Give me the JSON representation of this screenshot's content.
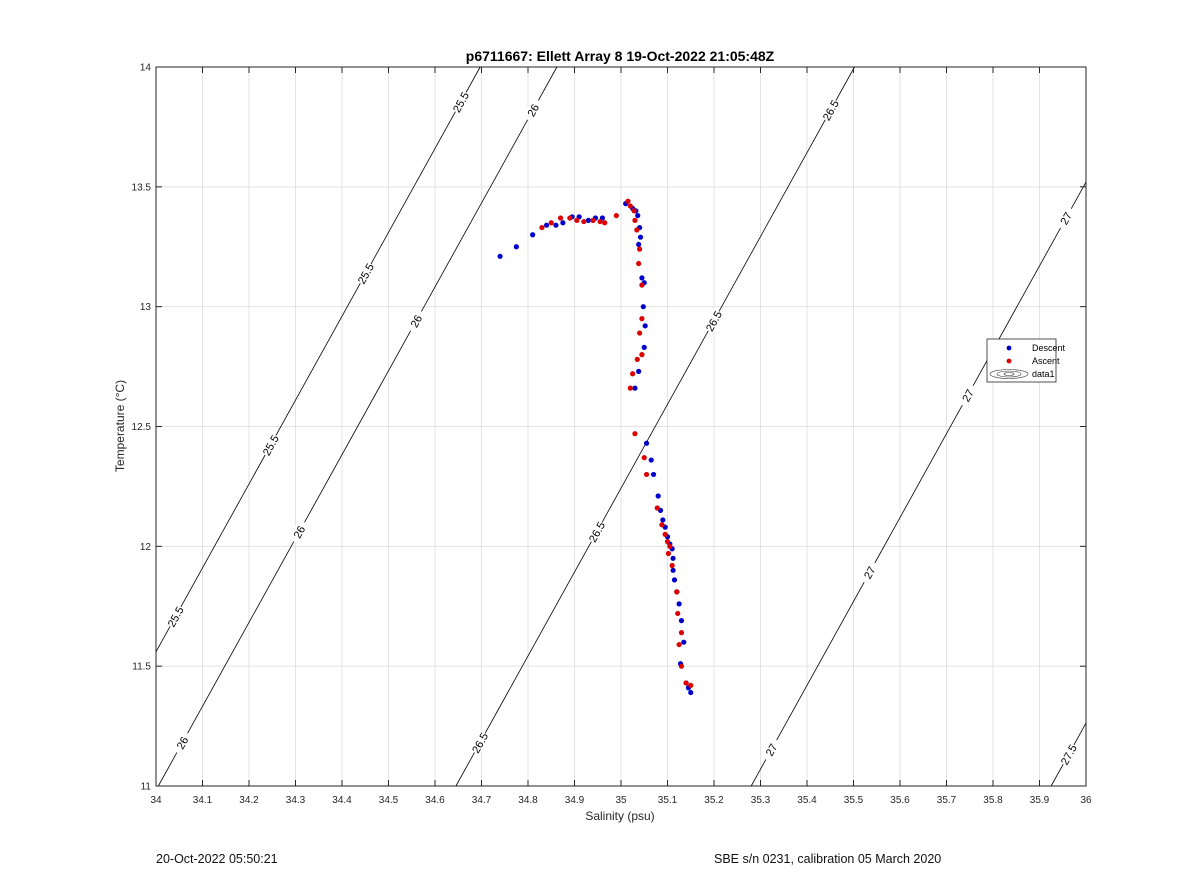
{
  "chart_data": {
    "type": "scatter",
    "title": "p6711667: Ellett Array 8 19-Oct-2022 21:05:48Z",
    "xlabel": "Salinity (psu)",
    "ylabel": "Temperature (°C)",
    "xlim": [
      34,
      36
    ],
    "ylim": [
      11,
      14
    ],
    "xticks": [
      "34",
      "34.1",
      "34.2",
      "34.3",
      "34.4",
      "34.5",
      "34.6",
      "34.7",
      "34.8",
      "34.9",
      "35",
      "35.1",
      "35.2",
      "35.3",
      "35.4",
      "35.5",
      "35.6",
      "35.7",
      "35.8",
      "35.9",
      "36"
    ],
    "yticks": [
      "11",
      "11.5",
      "12",
      "12.5",
      "13",
      "13.5",
      "14"
    ],
    "grid": true,
    "legend_position": "right",
    "legend": [
      "Descent",
      "Ascent",
      "data1"
    ],
    "series": [
      {
        "name": "Descent",
        "color": "#0000cc",
        "points": [
          [
            34.74,
            13.21
          ],
          [
            34.775,
            13.25
          ],
          [
            34.81,
            13.3
          ],
          [
            34.84,
            13.34
          ],
          [
            34.86,
            13.34
          ],
          [
            34.875,
            13.35
          ],
          [
            34.895,
            13.375
          ],
          [
            34.91,
            13.375
          ],
          [
            34.93,
            13.36
          ],
          [
            34.945,
            13.37
          ],
          [
            34.96,
            13.37
          ],
          [
            35.01,
            13.43
          ],
          [
            35.025,
            13.41
          ],
          [
            35.032,
            13.4
          ],
          [
            35.036,
            13.38
          ],
          [
            35.04,
            13.33
          ],
          [
            35.042,
            13.29
          ],
          [
            35.038,
            13.26
          ],
          [
            35.045,
            13.12
          ],
          [
            35.05,
            13.1
          ],
          [
            35.048,
            13.0
          ],
          [
            35.052,
            12.92
          ],
          [
            35.05,
            12.83
          ],
          [
            35.038,
            12.73
          ],
          [
            35.03,
            12.66
          ],
          [
            35.055,
            12.43
          ],
          [
            35.065,
            12.36
          ],
          [
            35.07,
            12.3
          ],
          [
            35.08,
            12.21
          ],
          [
            35.085,
            12.15
          ],
          [
            35.09,
            12.11
          ],
          [
            35.095,
            12.08
          ],
          [
            35.1,
            12.04
          ],
          [
            35.105,
            12.01
          ],
          [
            35.11,
            11.99
          ],
          [
            35.112,
            11.95
          ],
          [
            35.112,
            11.9
          ],
          [
            35.115,
            11.86
          ],
          [
            35.12,
            11.81
          ],
          [
            35.125,
            11.76
          ],
          [
            35.13,
            11.69
          ],
          [
            35.135,
            11.6
          ],
          [
            35.128,
            11.51
          ],
          [
            35.14,
            11.43
          ],
          [
            35.145,
            11.41
          ],
          [
            35.15,
            11.39
          ]
        ]
      },
      {
        "name": "Ascent",
        "color": "#dd0000",
        "points": [
          [
            34.83,
            13.33
          ],
          [
            34.85,
            13.35
          ],
          [
            34.87,
            13.37
          ],
          [
            34.89,
            13.37
          ],
          [
            34.905,
            13.36
          ],
          [
            34.92,
            13.355
          ],
          [
            34.94,
            13.36
          ],
          [
            34.955,
            13.355
          ],
          [
            34.965,
            13.35
          ],
          [
            34.99,
            13.38
          ],
          [
            35.015,
            13.44
          ],
          [
            35.02,
            13.42
          ],
          [
            35.028,
            13.4
          ],
          [
            35.03,
            13.36
          ],
          [
            35.034,
            13.32
          ],
          [
            35.04,
            13.24
          ],
          [
            35.038,
            13.18
          ],
          [
            35.045,
            13.09
          ],
          [
            35.045,
            12.95
          ],
          [
            35.04,
            12.89
          ],
          [
            35.045,
            12.8
          ],
          [
            35.035,
            12.78
          ],
          [
            35.025,
            12.72
          ],
          [
            35.02,
            12.66
          ],
          [
            35.03,
            12.47
          ],
          [
            35.05,
            12.37
          ],
          [
            35.055,
            12.3
          ],
          [
            35.078,
            12.16
          ],
          [
            35.088,
            12.09
          ],
          [
            35.095,
            12.05
          ],
          [
            35.1,
            12.02
          ],
          [
            35.105,
            12.0
          ],
          [
            35.102,
            11.97
          ],
          [
            35.11,
            11.92
          ],
          [
            35.12,
            11.81
          ],
          [
            35.122,
            11.72
          ],
          [
            35.13,
            11.64
          ],
          [
            35.125,
            11.59
          ],
          [
            35.13,
            11.5
          ],
          [
            35.14,
            11.43
          ],
          [
            35.15,
            11.42
          ]
        ]
      }
    ],
    "contours": [
      {
        "label": "25.5",
        "level": 25.5
      },
      {
        "label": "26",
        "level": 26
      },
      {
        "label": "26.5",
        "level": 26.5
      },
      {
        "label": "27",
        "level": 27
      },
      {
        "label": "27.5",
        "level": 27.5
      }
    ]
  },
  "footer": {
    "left": "20-Oct-2022 05:50:21",
    "right": "SBE s/n 0231, calibration 05 March 2020"
  }
}
